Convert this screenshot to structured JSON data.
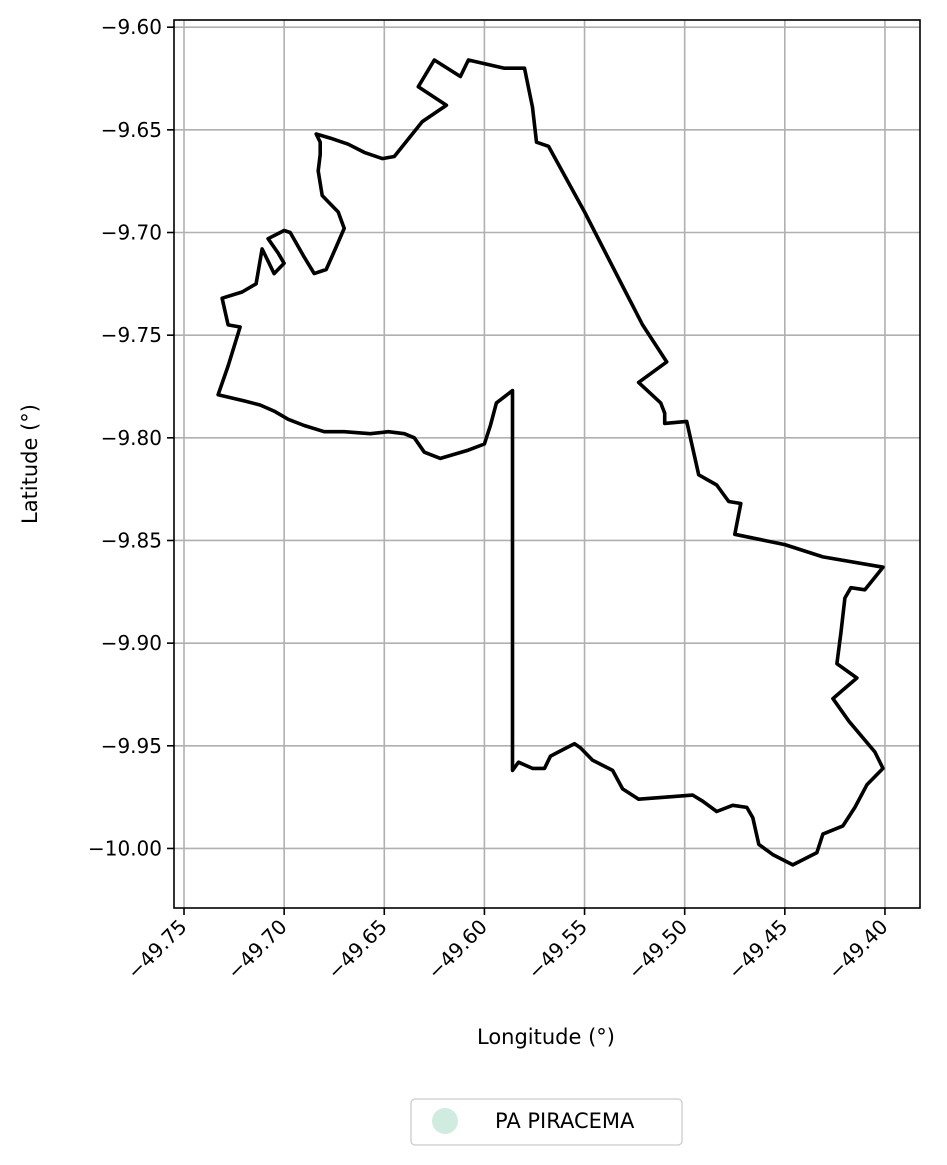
{
  "chart_data": {
    "type": "map",
    "xlabel": "Longitude (°)",
    "ylabel": "Latitude (°)",
    "xlim": [
      -49.755,
      -49.3825
    ],
    "ylim": [
      -10.029,
      -9.5965
    ],
    "xticks": [
      -49.75,
      -49.7,
      -49.65,
      -49.6,
      -49.55,
      -49.5,
      -49.45,
      -49.4
    ],
    "xtick_labels": [
      "−49.75",
      "−49.70",
      "−49.65",
      "−49.60",
      "−49.55",
      "−49.50",
      "−49.45",
      "−49.40"
    ],
    "yticks": [
      -9.6,
      -9.65,
      -9.7,
      -9.75,
      -9.8,
      -9.85,
      -9.9,
      -9.95,
      -10.0
    ],
    "ytick_labels": [
      "−9.60",
      "−9.65",
      "−9.70",
      "−9.75",
      "−9.80",
      "−9.85",
      "−9.90",
      "−9.95",
      "−10.00"
    ],
    "grid": true,
    "legend_position": "bottom-center",
    "legend": [
      {
        "label": "PA PIRACEMA",
        "color": "#d0ece0"
      }
    ],
    "boundary_color": "#000000",
    "boundary": [
      [
        -49.608,
        -9.616
      ],
      [
        -49.59,
        -9.62
      ],
      [
        -49.58,
        -9.62
      ],
      [
        -49.576,
        -9.639
      ],
      [
        -49.574,
        -9.656
      ],
      [
        -49.568,
        -9.658
      ],
      [
        -49.55,
        -9.69
      ],
      [
        -49.53,
        -9.728
      ],
      [
        -49.521,
        -9.745
      ],
      [
        -49.509,
        -9.763
      ],
      [
        -49.523,
        -9.773
      ],
      [
        -49.512,
        -9.783
      ],
      [
        -49.51,
        -9.788
      ],
      [
        -49.51,
        -9.793
      ],
      [
        -49.499,
        -9.792
      ],
      [
        -49.493,
        -9.818
      ],
      [
        -49.484,
        -9.823
      ],
      [
        -49.478,
        -9.831
      ],
      [
        -49.472,
        -9.832
      ],
      [
        -49.475,
        -9.847
      ],
      [
        -49.45,
        -9.852
      ],
      [
        -49.431,
        -9.858
      ],
      [
        -49.401,
        -9.863
      ],
      [
        -49.41,
        -9.874
      ],
      [
        -49.417,
        -9.873
      ],
      [
        -49.42,
        -9.878
      ],
      [
        -49.422,
        -9.895
      ],
      [
        -49.424,
        -9.91
      ],
      [
        -49.414,
        -9.917
      ],
      [
        -49.42,
        -9.922
      ],
      [
        -49.426,
        -9.927
      ],
      [
        -49.418,
        -9.938
      ],
      [
        -49.405,
        -9.953
      ],
      [
        -49.401,
        -9.961
      ],
      [
        -49.409,
        -9.969
      ],
      [
        -49.415,
        -9.98
      ],
      [
        -49.421,
        -9.989
      ],
      [
        -49.431,
        -9.993
      ],
      [
        -49.434,
        -10.002
      ],
      [
        -49.446,
        -10.008
      ],
      [
        -49.456,
        -10.003
      ],
      [
        -49.463,
        -9.998
      ],
      [
        -49.466,
        -9.985
      ],
      [
        -49.469,
        -9.98
      ],
      [
        -49.476,
        -9.979
      ],
      [
        -49.484,
        -9.982
      ],
      [
        -49.491,
        -9.977
      ],
      [
        -49.496,
        -9.974
      ],
      [
        -49.509,
        -9.975
      ],
      [
        -49.523,
        -9.976
      ],
      [
        -49.531,
        -9.971
      ],
      [
        -49.536,
        -9.962
      ],
      [
        -49.546,
        -9.957
      ],
      [
        -49.552,
        -9.951
      ],
      [
        -49.555,
        -9.949
      ],
      [
        -49.561,
        -9.952
      ],
      [
        -49.567,
        -9.955
      ],
      [
        -49.57,
        -9.961
      ],
      [
        -49.576,
        -9.961
      ],
      [
        -49.583,
        -9.958
      ],
      [
        -49.586,
        -9.962
      ],
      [
        -49.586,
        -9.84
      ],
      [
        -49.586,
        -9.777
      ],
      [
        -49.594,
        -9.783
      ],
      [
        -49.597,
        -9.794
      ],
      [
        -49.6,
        -9.803
      ],
      [
        -49.608,
        -9.806
      ],
      [
        -49.622,
        -9.81
      ],
      [
        -49.63,
        -9.807
      ],
      [
        -49.635,
        -9.8
      ],
      [
        -49.64,
        -9.798
      ],
      [
        -49.648,
        -9.797
      ],
      [
        -49.657,
        -9.798
      ],
      [
        -49.67,
        -9.797
      ],
      [
        -49.68,
        -9.797
      ],
      [
        -49.69,
        -9.794
      ],
      [
        -49.698,
        -9.791
      ],
      [
        -49.705,
        -9.787
      ],
      [
        -49.712,
        -9.784
      ],
      [
        -49.72,
        -9.782
      ],
      [
        -49.733,
        -9.779
      ],
      [
        -49.728,
        -9.765
      ],
      [
        -49.722,
        -9.746
      ],
      [
        -49.728,
        -9.745
      ],
      [
        -49.731,
        -9.732
      ],
      [
        -49.721,
        -9.729
      ],
      [
        -49.714,
        -9.725
      ],
      [
        -49.711,
        -9.708
      ],
      [
        -49.708,
        -9.714
      ],
      [
        -49.705,
        -9.72
      ],
      [
        -49.7,
        -9.715
      ],
      [
        -49.703,
        -9.71
      ],
      [
        -49.708,
        -9.703
      ],
      [
        -49.7,
        -9.699
      ],
      [
        -49.697,
        -9.7
      ],
      [
        -49.69,
        -9.712
      ],
      [
        -49.685,
        -9.72
      ],
      [
        -49.679,
        -9.718
      ],
      [
        -49.674,
        -9.707
      ],
      [
        -49.67,
        -9.698
      ],
      [
        -49.673,
        -9.69
      ],
      [
        -49.678,
        -9.685
      ],
      [
        -49.681,
        -9.682
      ],
      [
        -49.683,
        -9.67
      ],
      [
        -49.682,
        -9.662
      ],
      [
        -49.682,
        -9.656
      ],
      [
        -49.684,
        -9.652
      ],
      [
        -49.677,
        -9.654
      ],
      [
        -49.668,
        -9.657
      ],
      [
        -49.66,
        -9.661
      ],
      [
        -49.651,
        -9.664
      ],
      [
        -49.645,
        -9.663
      ],
      [
        -49.631,
        -9.646
      ],
      [
        -49.619,
        -9.638
      ],
      [
        -49.633,
        -9.629
      ],
      [
        -49.625,
        -9.616
      ],
      [
        -49.612,
        -9.624
      ],
      [
        -49.608,
        -9.616
      ]
    ]
  }
}
